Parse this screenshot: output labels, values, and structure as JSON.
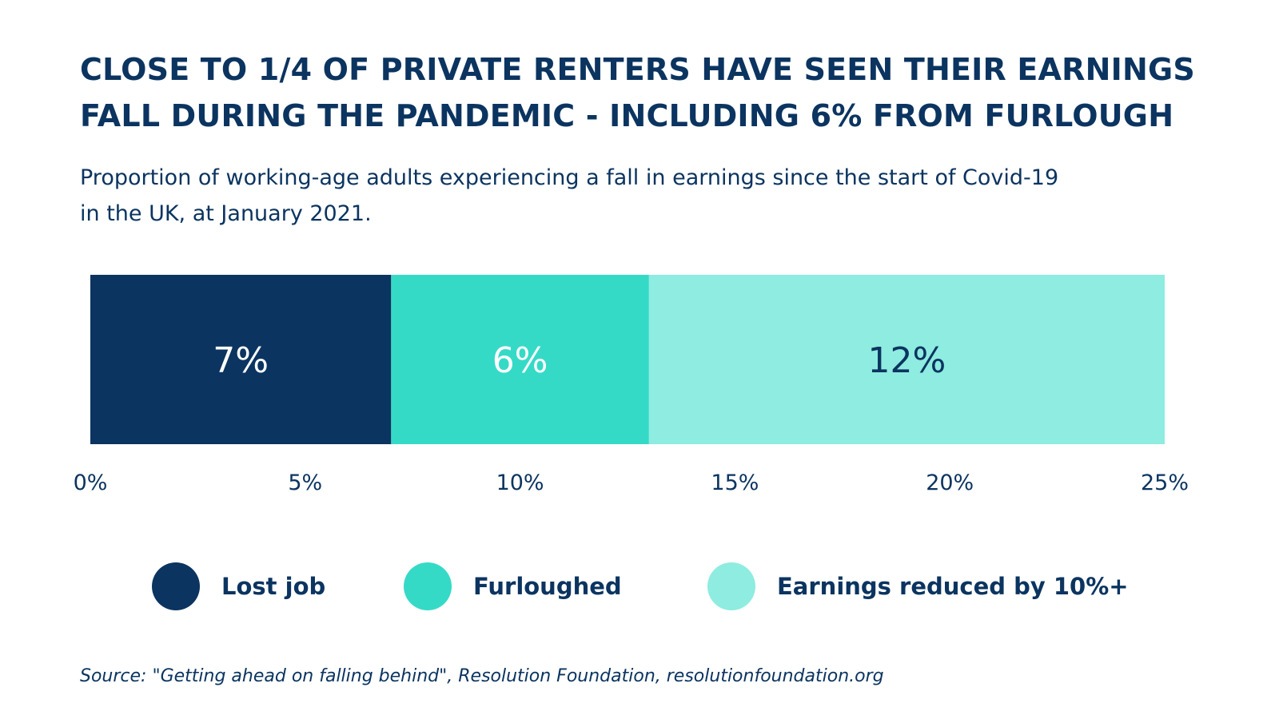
{
  "title_lines": [
    "CLOSE TO 1/4 OF PRIVATE RENTERS HAVE SEEN THEIR EARNINGS",
    "FALL DURING THE PANDEMIC - INCLUDING 6% FROM FURLOUGH"
  ],
  "subtitle_lines": [
    "Proportion of working-age adults experiencing a fall in earnings since the start of Covid-19",
    "in the UK, at January 2021."
  ],
  "chart_data": {
    "type": "bar",
    "orientation": "horizontal",
    "stacked": true,
    "title": "CLOSE TO 1/4 OF PRIVATE RENTERS HAVE SEEN THEIR EARNINGS FALL DURING THE PANDEMIC - INCLUDING 6% FROM FURLOUGH",
    "subtitle": "Proportion of working-age adults experiencing a fall in earnings since the start of Covid-19 in the UK, at January 2021.",
    "categories": [
      ""
    ],
    "series": [
      {
        "name": "Lost job",
        "values": [
          7
        ],
        "label": "7%",
        "color": "#0b3460",
        "label_color": "#ffffff"
      },
      {
        "name": "Furloughed",
        "values": [
          6
        ],
        "label": "6%",
        "color": "#35dac7",
        "label_color": "#ffffff"
      },
      {
        "name": "Earnings reduced by 10%+",
        "values": [
          12
        ],
        "label": "12%",
        "color": "#8eece0",
        "label_color": "#0b3460"
      }
    ],
    "xlim": [
      0,
      25
    ],
    "ticks": [
      0,
      5,
      10,
      15,
      20,
      25
    ],
    "tick_labels": [
      "0%",
      "5%",
      "10%",
      "15%",
      "20%",
      "25%"
    ],
    "xlabel": "",
    "ylabel": "",
    "grid": false,
    "legend_position": "bottom"
  },
  "legend": [
    {
      "label": "Lost job",
      "color": "#0b3460"
    },
    {
      "label": "Furloughed",
      "color": "#35dac7"
    },
    {
      "label": "Earnings reduced by 10%+",
      "color": "#8eece0"
    }
  ],
  "source": "Source: \"Getting ahead on falling behind\", Resolution Foundation, resolutionfoundation.org"
}
